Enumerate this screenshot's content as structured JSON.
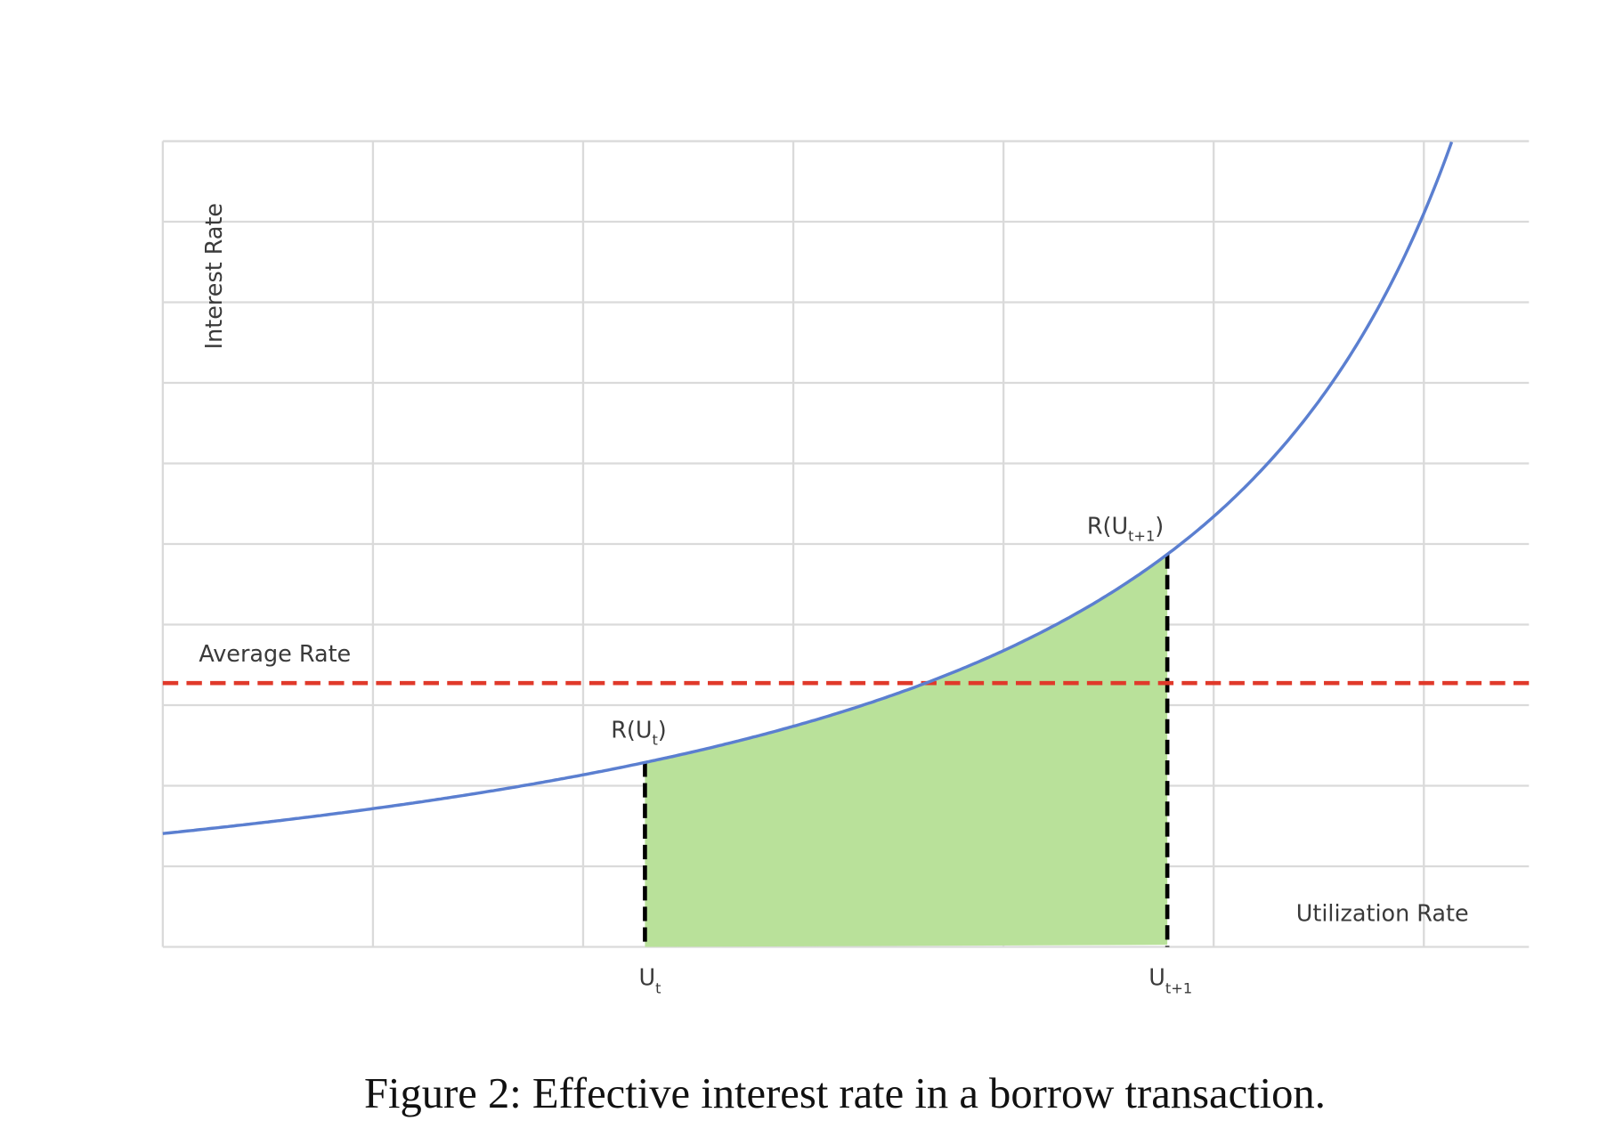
{
  "figure": {
    "y_axis_label": "Interest Rate",
    "x_axis_label": "Utilization Rate",
    "average_label": "Average Rate",
    "rate_start": {
      "text": "R(U",
      "sub": "t",
      "close": ")"
    },
    "rate_end": {
      "text": "R(U",
      "sub": "t+1",
      "close": ")"
    },
    "u_start": {
      "text": "U",
      "sub": "t"
    },
    "u_end": {
      "text": "U",
      "sub": "t+1"
    },
    "caption": "Figure 2: Effective interest rate in a borrow transaction."
  }
}
